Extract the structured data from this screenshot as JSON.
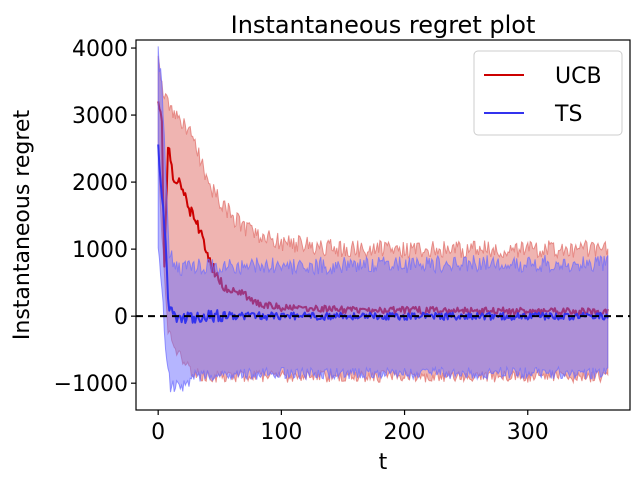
{
  "chart_data": {
    "type": "line",
    "title": "Instantaneous regret plot",
    "xlabel": "t",
    "ylabel": "Instantaneous regret",
    "xlim": [
      -18,
      383
    ],
    "ylim": [
      -1400,
      4120
    ],
    "xticks": [
      0,
      100,
      200,
      300
    ],
    "yticks": [
      -1000,
      0,
      1000,
      2000,
      3000,
      4000
    ],
    "xtick_labels": [
      "0",
      "100",
      "200",
      "300"
    ],
    "ytick_labels": [
      "−1000",
      "0",
      "1000",
      "2000",
      "3000",
      "4000"
    ],
    "reference_line": {
      "y": 0,
      "style": "dashed",
      "color": "#000000"
    },
    "legend_position": "upper right",
    "grid": false,
    "n_points": 366,
    "series": [
      {
        "name": "UCB",
        "color": "#cc0000",
        "band_color": "#e06a64",
        "key_points": [
          [
            0,
            3250
          ],
          [
            3,
            2900
          ],
          [
            5,
            750
          ],
          [
            8,
            2600
          ],
          [
            12,
            2100
          ],
          [
            20,
            1950
          ],
          [
            25,
            1600
          ],
          [
            30,
            1500
          ],
          [
            40,
            900
          ],
          [
            50,
            500
          ],
          [
            60,
            400
          ],
          [
            70,
            320
          ],
          [
            80,
            200
          ],
          [
            100,
            120
          ],
          [
            150,
            100
          ],
          [
            200,
            90
          ],
          [
            250,
            80
          ],
          [
            300,
            70
          ],
          [
            365,
            60
          ]
        ],
        "band_upper_key_points": [
          [
            0,
            3800
          ],
          [
            5,
            3300
          ],
          [
            10,
            3100
          ],
          [
            30,
            2600
          ],
          [
            40,
            2000
          ],
          [
            55,
            1600
          ],
          [
            70,
            1300
          ],
          [
            100,
            1100
          ],
          [
            150,
            1000
          ],
          [
            250,
            1000
          ],
          [
            365,
            1000
          ]
        ],
        "band_lower_key_points": [
          [
            0,
            2500
          ],
          [
            3,
            1200
          ],
          [
            8,
            -200
          ],
          [
            15,
            -500
          ],
          [
            25,
            -800
          ],
          [
            35,
            -900
          ],
          [
            100,
            -900
          ],
          [
            365,
            -900
          ]
        ]
      },
      {
        "name": "TS",
        "color": "#3333ee",
        "band_color": "#6b6bff",
        "key_points": [
          [
            0,
            2600
          ],
          [
            3,
            1800
          ],
          [
            6,
            1100
          ],
          [
            8,
            200
          ],
          [
            12,
            0
          ],
          [
            20,
            -20
          ],
          [
            50,
            10
          ],
          [
            100,
            0
          ],
          [
            200,
            0
          ],
          [
            300,
            0
          ],
          [
            365,
            0
          ]
        ],
        "band_upper_key_points": [
          [
            0,
            3900
          ],
          [
            3,
            3500
          ],
          [
            6,
            2200
          ],
          [
            9,
            1000
          ],
          [
            14,
            700
          ],
          [
            30,
            750
          ],
          [
            100,
            750
          ],
          [
            365,
            800
          ]
        ],
        "band_lower_key_points": [
          [
            0,
            1000
          ],
          [
            3,
            400
          ],
          [
            7,
            -700
          ],
          [
            10,
            -1050
          ],
          [
            20,
            -1050
          ],
          [
            25,
            -1000
          ],
          [
            30,
            -900
          ],
          [
            100,
            -850
          ],
          [
            365,
            -850
          ]
        ]
      }
    ]
  }
}
